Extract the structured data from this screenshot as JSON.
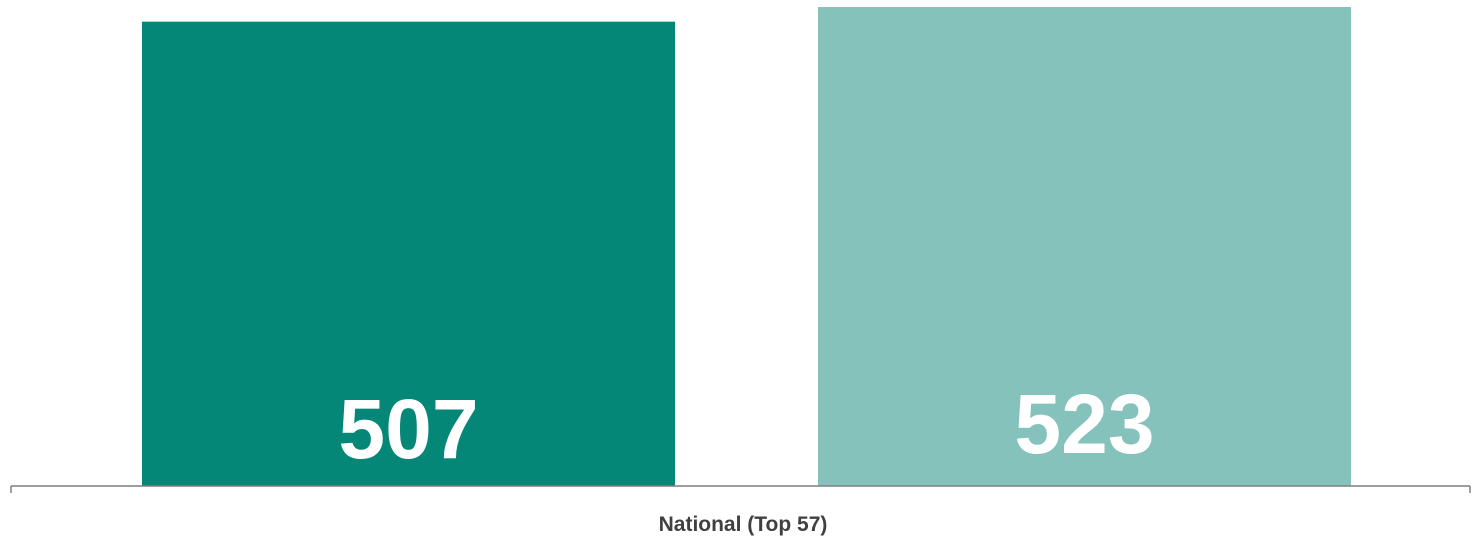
{
  "chart_data": {
    "type": "bar",
    "categories": [
      "National (Top 57)"
    ],
    "series": [
      {
        "values": [
          507
        ],
        "color": "#048777"
      },
      {
        "values": [
          523
        ],
        "color": "#84c2bb"
      }
    ],
    "ylim": [
      0,
      523
    ],
    "grid": false,
    "legend": "none",
    "axis_color": "#7f7f7f"
  }
}
